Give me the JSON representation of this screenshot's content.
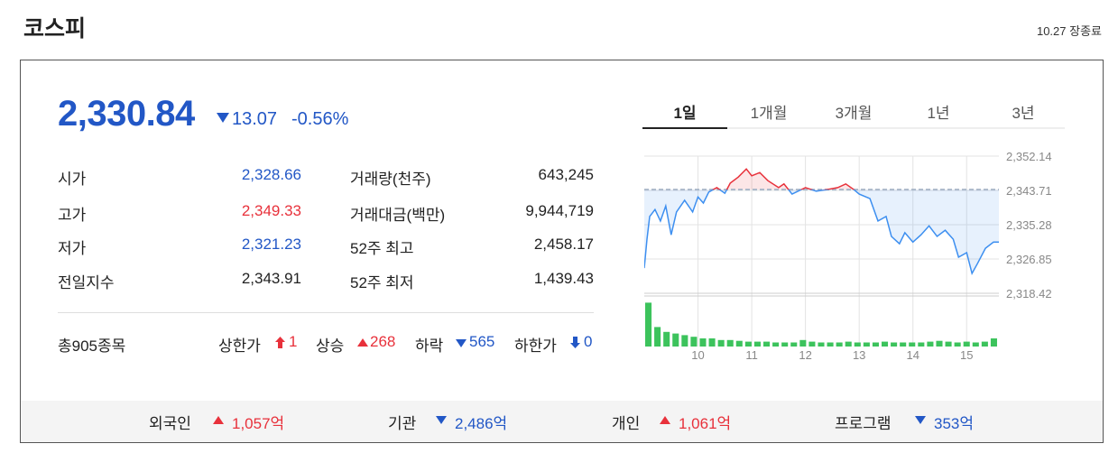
{
  "header": {
    "title": "코스피",
    "status": "10.27 장종료"
  },
  "price": {
    "value": "2,330.84",
    "change": "13.07",
    "change_rate": "-0.56%"
  },
  "stats_left": [
    {
      "label": "시가",
      "value": "2,328.66"
    },
    {
      "label": "고가",
      "value": "2,349.33"
    },
    {
      "label": "저가",
      "value": "2,321.23"
    },
    {
      "label": "전일지수",
      "value": "2,343.91"
    }
  ],
  "stats_right": [
    {
      "label": "거래량(천주)",
      "value": "643,245"
    },
    {
      "label": "거래대금(백만)",
      "value": "9,944,719"
    },
    {
      "label": "52주 최고",
      "value": "2,458.17"
    },
    {
      "label": "52주 최저",
      "value": "1,439.43"
    }
  ],
  "breadth": {
    "total": "총905종목",
    "items": [
      {
        "label": "상한가",
        "value": "1"
      },
      {
        "label": "상승",
        "value": "268"
      },
      {
        "label": "하락",
        "value": "565"
      },
      {
        "label": "하한가",
        "value": "0"
      }
    ]
  },
  "investors": [
    {
      "label": "외국인",
      "value": "1,057억"
    },
    {
      "label": "기관",
      "value": "2,486억"
    },
    {
      "label": "개인",
      "value": "1,061억"
    },
    {
      "label": "프로그램",
      "value": "353억"
    }
  ],
  "tabs": [
    "1일",
    "1개월",
    "3개월",
    "1년",
    "3년"
  ],
  "chart_data": {
    "type": "line",
    "x": [
      9.0,
      9.05,
      9.1,
      9.2,
      9.3,
      9.4,
      9.5,
      9.6,
      9.75,
      9.9,
      10.0,
      10.1,
      10.2,
      10.35,
      10.5,
      10.6,
      10.75,
      10.9,
      11.0,
      11.15,
      11.3,
      11.5,
      11.6,
      11.75,
      12.0,
      12.2,
      12.4,
      12.6,
      12.75,
      12.9,
      13.0,
      13.2,
      13.35,
      13.5,
      13.6,
      13.75,
      13.85,
      14.0,
      14.15,
      14.3,
      14.45,
      14.6,
      14.75,
      14.85,
      15.0,
      15.1,
      15.2,
      15.35,
      15.5,
      15.6
    ],
    "series": [
      {
        "color": "#3d8ff0",
        "up_color": "#e8313b",
        "values": [
          2324.6,
          2331.7,
          2337.3,
          2339.0,
          2336.2,
          2339.9,
          2332.8,
          2338.4,
          2341.3,
          2338.4,
          2342.1,
          2340.6,
          2343.3,
          2344.4,
          2343.0,
          2345.5,
          2347.0,
          2349.0,
          2347.3,
          2348.1,
          2346.1,
          2344.4,
          2345.3,
          2342.8,
          2344.4,
          2343.5,
          2343.9,
          2344.4,
          2345.3,
          2343.9,
          2342.8,
          2341.7,
          2336.2,
          2337.3,
          2332.4,
          2330.6,
          2333.3,
          2331.0,
          2332.8,
          2335.0,
          2332.4,
          2333.9,
          2331.7,
          2327.3,
          2328.4,
          2323.3,
          2325.7,
          2329.5,
          2331.0,
          2331.0
        ]
      }
    ],
    "baseline": 2343.91,
    "xlim": [
      9.0,
      15.6
    ],
    "xticks": [
      10,
      11,
      12,
      13,
      14,
      15
    ],
    "ylim": [
      2318.42,
      2352.14
    ],
    "yticks": [
      {
        "value": 2318.42,
        "label": "2,318.42"
      },
      {
        "value": 2326.85,
        "label": "2,326.85"
      },
      {
        "value": 2335.28,
        "label": "2,335.28"
      },
      {
        "value": 2343.71,
        "label": "2,343.71"
      },
      {
        "value": 2352.14,
        "label": "2,352.14"
      }
    ],
    "grid": true,
    "volume": {
      "color": "#3cc35c",
      "ylim": [
        0,
        60
      ],
      "values": [
        54,
        24,
        18,
        16,
        14,
        12,
        10,
        10,
        8,
        8,
        7,
        6,
        6,
        6,
        5,
        5,
        5,
        8,
        6,
        5,
        5,
        5,
        6,
        5,
        5,
        5,
        6,
        5,
        5,
        5,
        5,
        6,
        7,
        6,
        5,
        6,
        5,
        6,
        10
      ]
    }
  }
}
